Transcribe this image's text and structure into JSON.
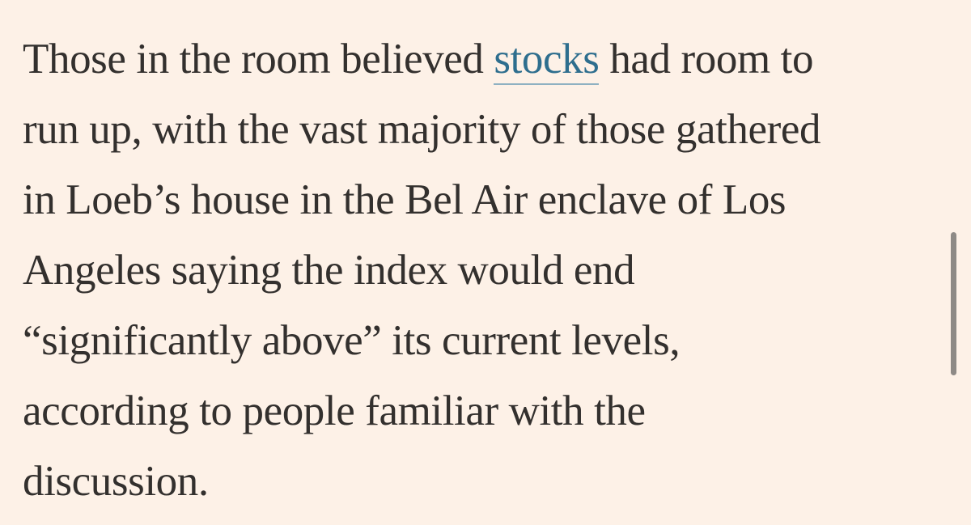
{
  "article": {
    "lines": [
      {
        "before": "Those in the room believed ",
        "link": "stocks",
        "after": " had room to"
      },
      {
        "text": "run up, with the vast majority of those gathered"
      },
      {
        "text": "in Loeb’s house in the Bel Air enclave of Los"
      },
      {
        "text": "Angeles saying the index would end"
      },
      {
        "text": "“significantly above” its current levels,"
      },
      {
        "text": "according to people familiar with the"
      },
      {
        "text": "discussion."
      }
    ]
  },
  "colors": {
    "background": "#FDF1E7",
    "text": "#33302E",
    "link": "#2E6E8E",
    "scrollbar": "#8E8A86"
  }
}
